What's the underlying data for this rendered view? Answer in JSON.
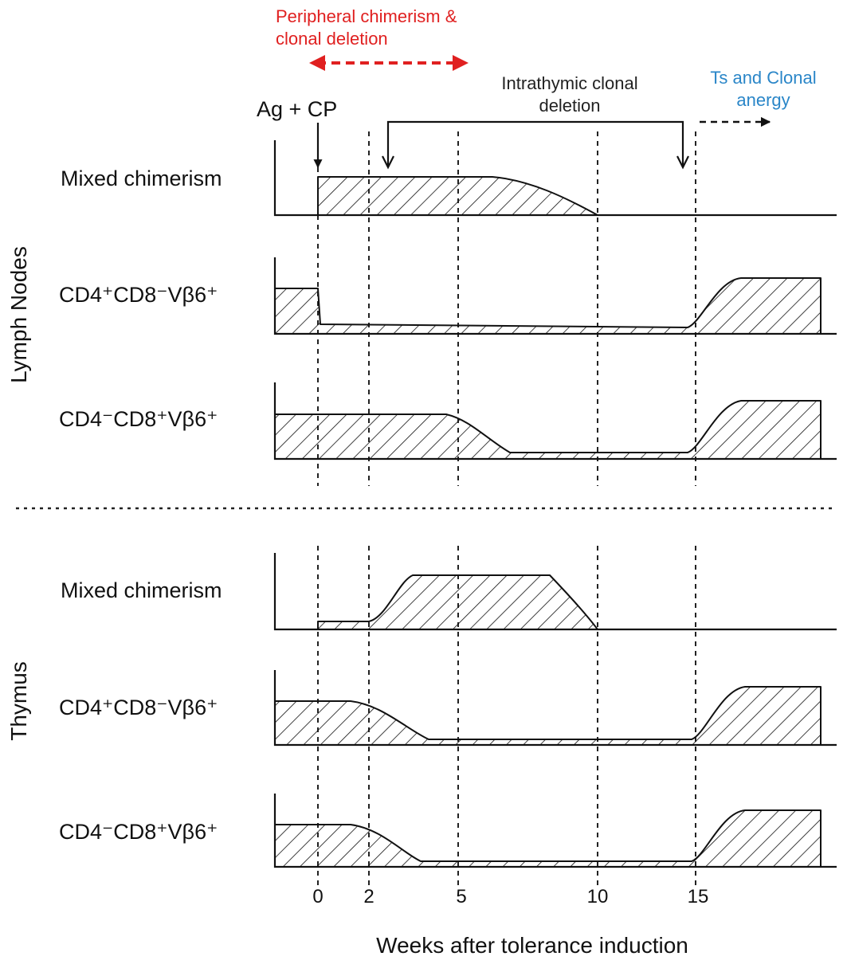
{
  "annotations": {
    "peripheral_line1": "Peripheral chimerism &",
    "peripheral_line2": "clonal deletion",
    "intrathymic_line1": "Intrathymic clonal",
    "intrathymic_line2": "deletion",
    "ts_line1": "Ts and Clonal",
    "ts_line2": "anergy",
    "ag_cp": "Ag + CP"
  },
  "colors": {
    "red_annotation": "#e02020",
    "blue_annotation": "#2a86c8"
  },
  "sections": [
    {
      "label": "Lymph Nodes",
      "panels": [
        {
          "label": "Mixed chimerism"
        },
        {
          "label": "CD4⁺CD8⁻Vβ6⁺"
        },
        {
          "label": "CD4⁻CD8⁺Vβ6⁺"
        }
      ]
    },
    {
      "label": "Thymus",
      "panels": [
        {
          "label": "Mixed chimerism"
        },
        {
          "label": "CD4⁺CD8⁻Vβ6⁺"
        },
        {
          "label": "CD4⁻CD8⁺Vβ6⁺"
        }
      ]
    }
  ],
  "x_axis": {
    "title": "Weeks after tolerance induction",
    "ticks": [
      "0",
      "2",
      "5",
      "10",
      "15"
    ]
  }
}
